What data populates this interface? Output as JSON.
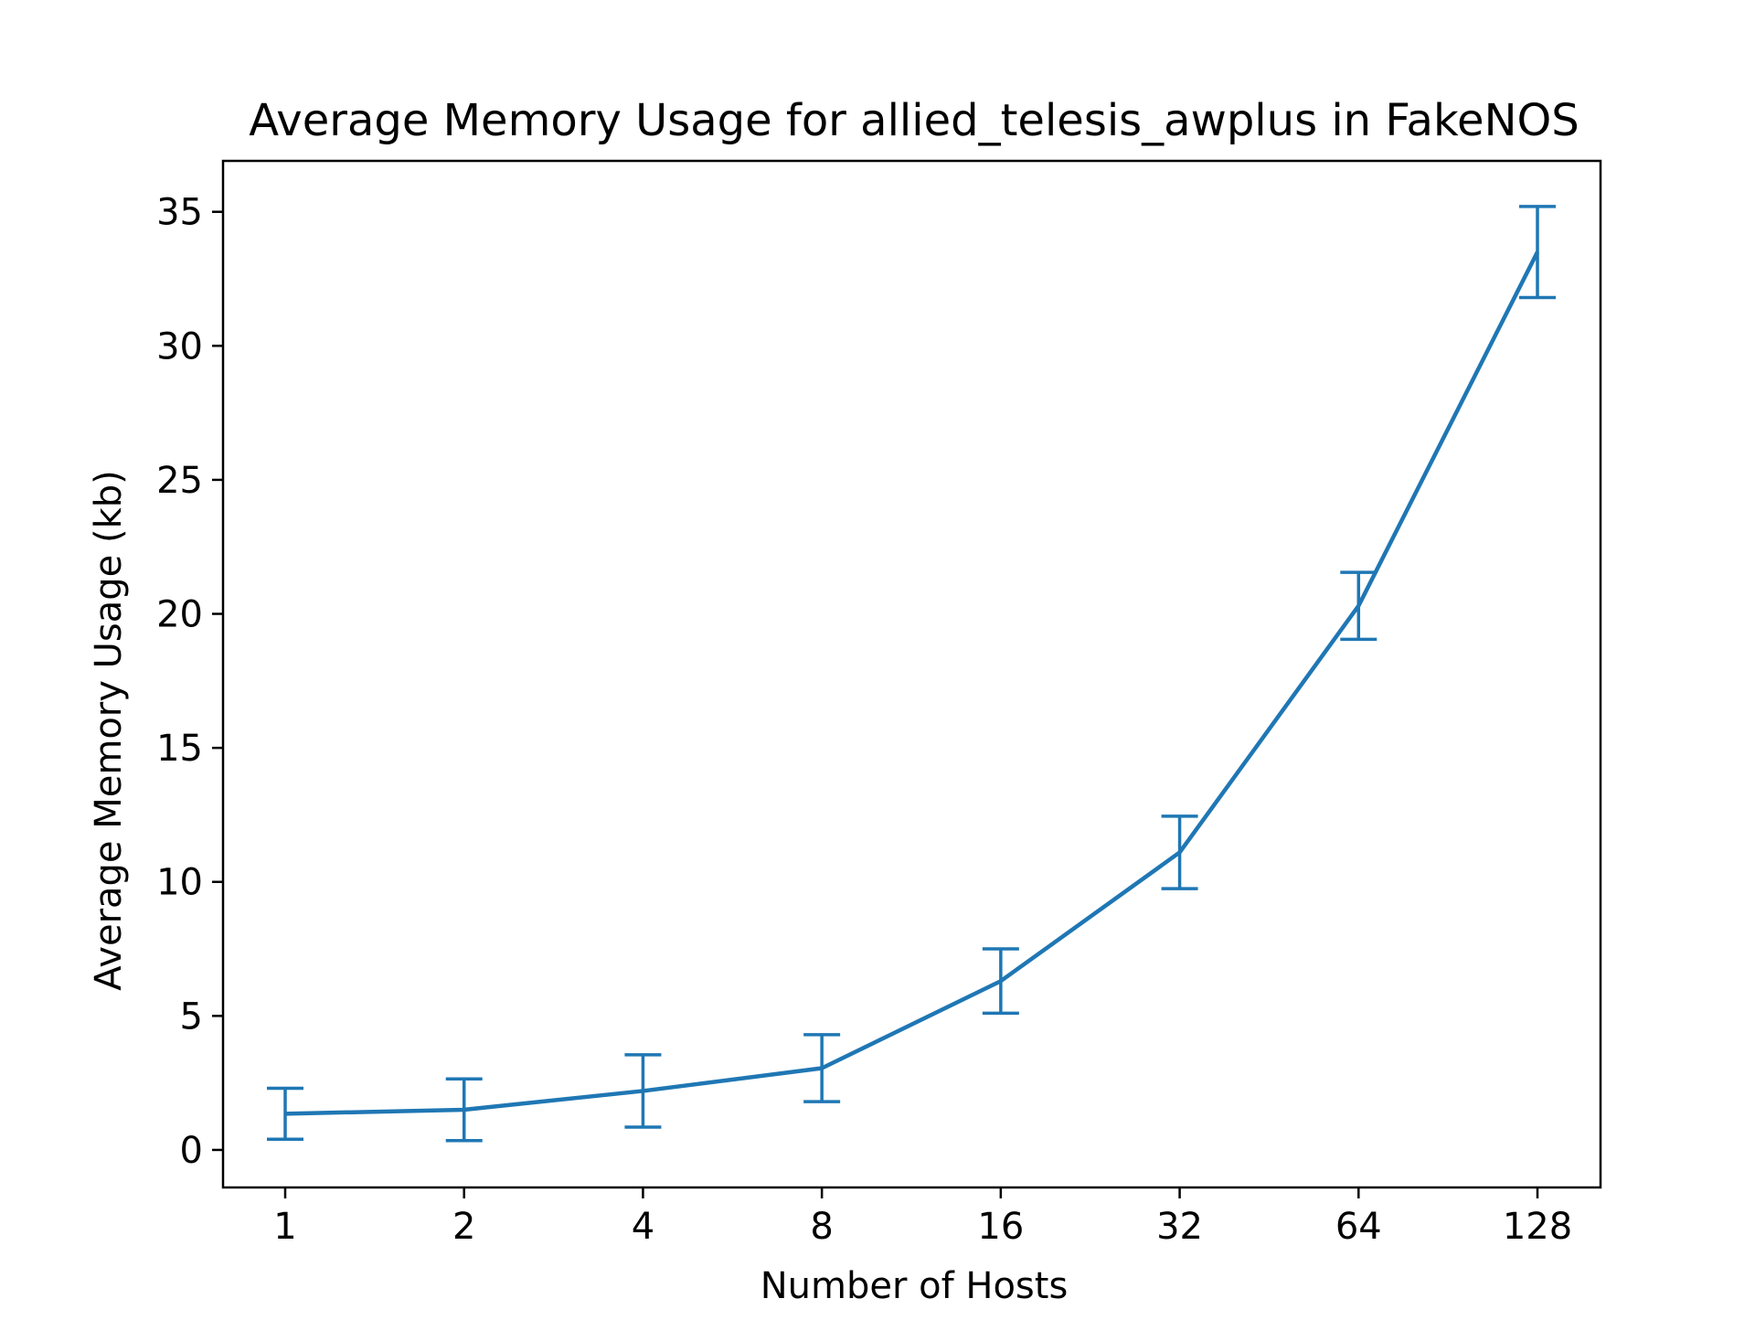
{
  "chart_data": {
    "type": "line",
    "title": "Average Memory Usage for allied_telesis_awplus in FakeNOS",
    "xlabel": "Number of Hosts",
    "ylabel": "Average Memory Usage (kb)",
    "x_scale": "log2",
    "categories": [
      "1",
      "2",
      "4",
      "8",
      "16",
      "32",
      "64",
      "128"
    ],
    "x": [
      1,
      2,
      4,
      8,
      16,
      32,
      64,
      128
    ],
    "ylim": [
      -1.4,
      36.9
    ],
    "yticks": [
      0,
      5,
      10,
      15,
      20,
      25,
      30,
      35
    ],
    "grid": false,
    "series": [
      {
        "values": [
          1.35,
          1.5,
          2.2,
          3.05,
          6.3,
          11.1,
          20.3,
          33.5
        ],
        "error": [
          0.95,
          1.15,
          1.35,
          1.25,
          1.2,
          1.35,
          1.25,
          1.7
        ],
        "color": "#1f77b4"
      }
    ]
  }
}
